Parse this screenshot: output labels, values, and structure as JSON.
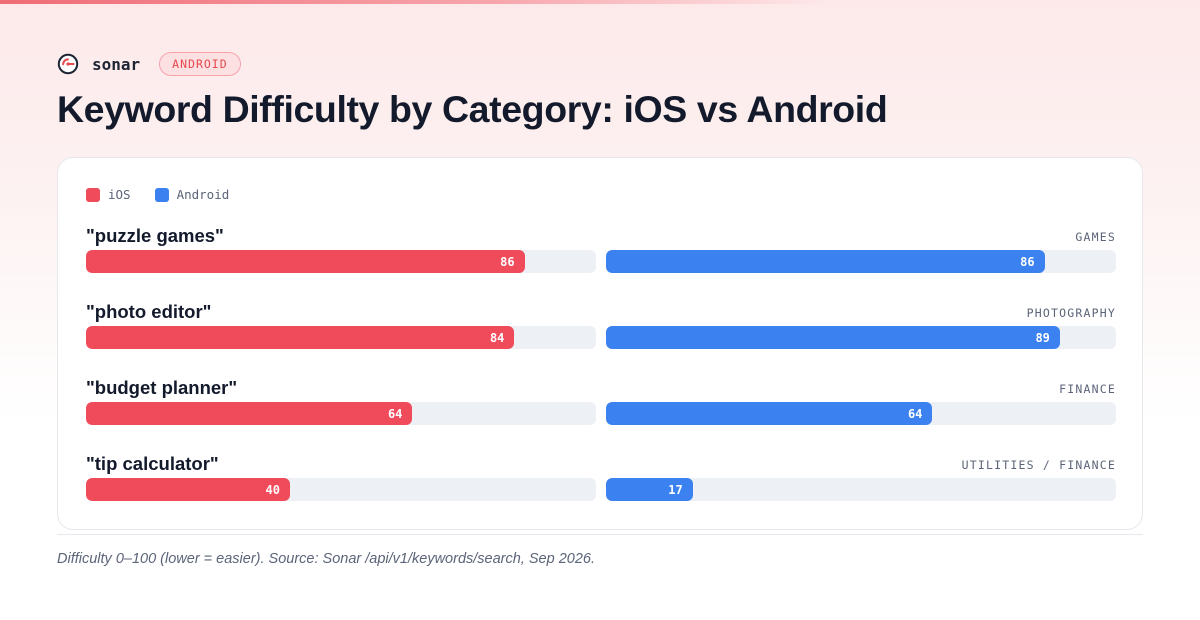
{
  "brand": {
    "name": "sonar",
    "platform_badge": "ANDROID"
  },
  "title": "Keyword Difficulty by Category: iOS vs Android",
  "footnote": "Difficulty 0–100 (lower = easier). Source: Sonar /api/v1/keywords/search, Sep 2026.",
  "colors": {
    "ios": "#f04b5a",
    "android": "#3b82f0"
  },
  "chart_data": {
    "type": "bar",
    "orientation": "horizontal",
    "title": "Keyword Difficulty by Category: iOS vs Android",
    "xlim": [
      0,
      100
    ],
    "legend_placement": "top-left",
    "grid": false,
    "series": [
      {
        "name": "iOS",
        "color": "#f04b5a",
        "values": [
          86,
          84,
          64,
          40
        ]
      },
      {
        "name": "Android",
        "color": "#3b82f0",
        "values": [
          86,
          89,
          64,
          17
        ]
      }
    ],
    "rows": [
      {
        "keyword": "\"puzzle games\"",
        "category": "GAMES",
        "ios": 86,
        "android": 86
      },
      {
        "keyword": "\"photo editor\"",
        "category": "PHOTOGRAPHY",
        "ios": 84,
        "android": 89
      },
      {
        "keyword": "\"budget planner\"",
        "category": "FINANCE",
        "ios": 64,
        "android": 64
      },
      {
        "keyword": "\"tip calculator\"",
        "category": "UTILITIES / FINANCE",
        "ios": 40,
        "android": 17
      }
    ]
  }
}
